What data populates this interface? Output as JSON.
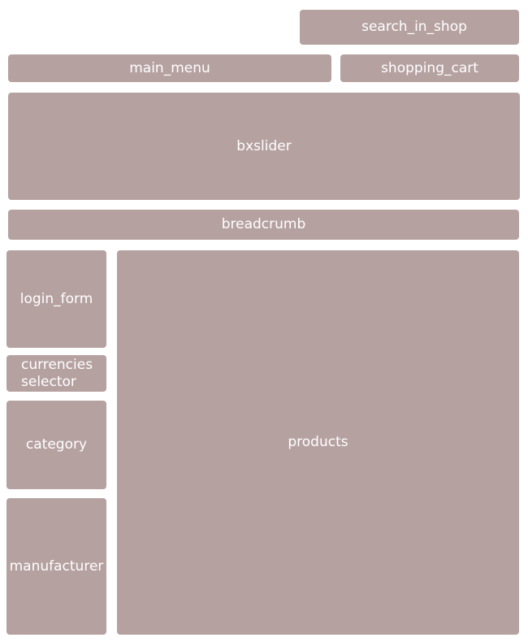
{
  "blocks": {
    "search_in_shop": "search_in_shop",
    "main_menu": "main_menu",
    "shopping_cart": "shopping_cart",
    "bxslider": "bxslider",
    "breadcrumb": "breadcrumb",
    "login_form": "login_form",
    "currencies_selector": "currencies\nselector",
    "category": "category",
    "manufacturer": "manufacturer",
    "products": "products"
  },
  "colors": {
    "block_fill": "#b6a1a1",
    "label_text": "#ffffff",
    "background": "#ffffff"
  }
}
